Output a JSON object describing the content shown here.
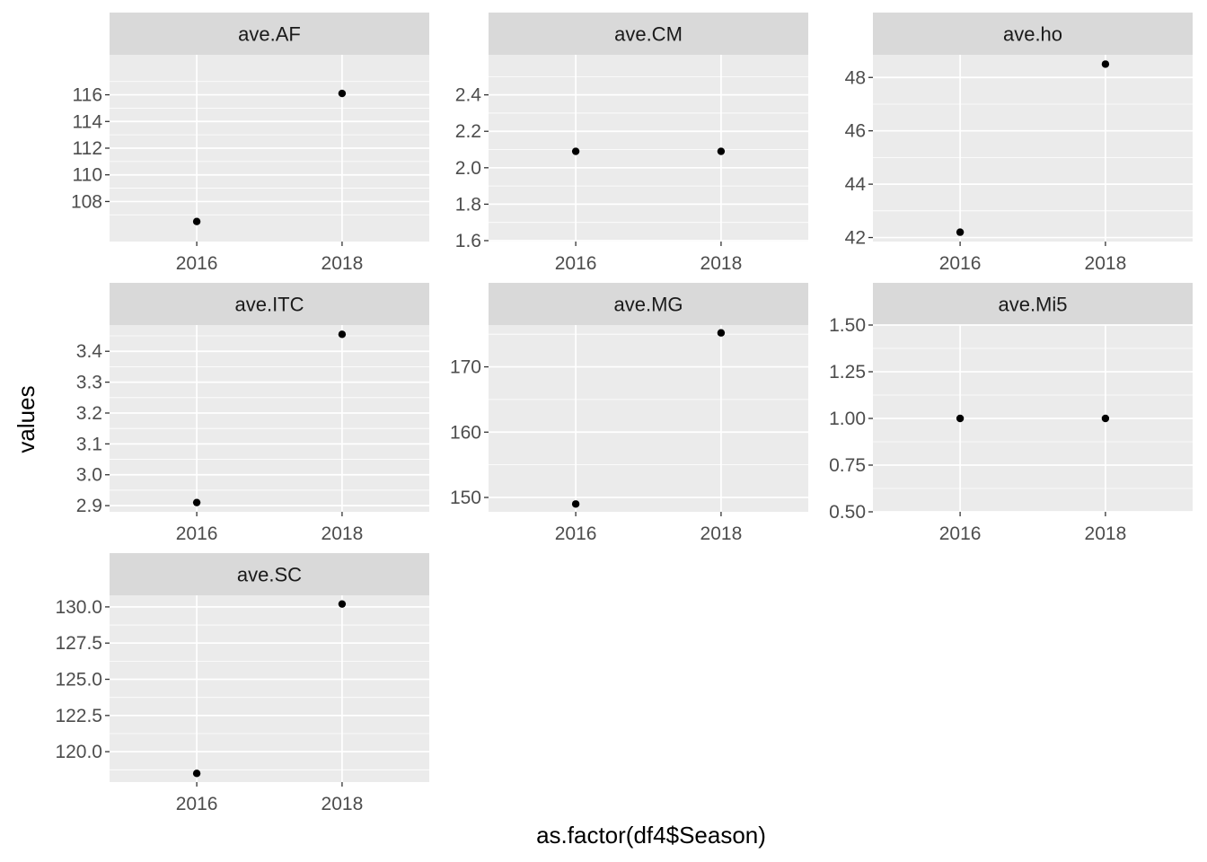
{
  "chart_data": {
    "type": "scatter",
    "xlabel": "as.factor(df4$Season)",
    "ylabel": "values",
    "categories": [
      "2016",
      "2018"
    ],
    "panels": [
      {
        "strip": "ave.AF",
        "values": [
          106.5,
          116.1
        ],
        "ylim": [
          105.0,
          119.0
        ],
        "yticks": [
          108,
          110,
          112,
          114,
          116
        ],
        "ytick_labels": [
          "108",
          "110",
          "112",
          "114",
          "116"
        ]
      },
      {
        "strip": "ave.CM",
        "values": [
          2.09,
          2.09
        ],
        "ylim": [
          1.595,
          2.62
        ],
        "yticks": [
          1.6,
          1.8,
          2.0,
          2.2,
          2.4
        ],
        "ytick_labels": [
          "1.6",
          "1.8",
          "2.0",
          "2.2",
          "2.4"
        ]
      },
      {
        "strip": "ave.ho",
        "values": [
          42.2,
          48.5
        ],
        "ylim": [
          41.85,
          48.85
        ],
        "yticks": [
          42,
          44,
          46,
          48
        ],
        "ytick_labels": [
          "42",
          "44",
          "46",
          "48"
        ]
      },
      {
        "strip": "ave.ITC",
        "values": [
          2.91,
          3.455
        ],
        "ylim": [
          2.88,
          3.485
        ],
        "yticks": [
          2.9,
          3.0,
          3.1,
          3.2,
          3.3,
          3.4
        ],
        "ytick_labels": [
          "2.9",
          "3.0",
          "3.1",
          "3.2",
          "3.3",
          "3.4"
        ]
      },
      {
        "strip": "ave.MG",
        "values": [
          149,
          175.2
        ],
        "ylim": [
          147.8,
          176.4
        ],
        "yticks": [
          150,
          160,
          170
        ],
        "ytick_labels": [
          "150",
          "160",
          "170"
        ]
      },
      {
        "strip": "ave.Mi5",
        "values": [
          1.0,
          1.0
        ],
        "ylim": [
          0.5,
          1.5
        ],
        "yticks": [
          0.5,
          0.75,
          1.0,
          1.25,
          1.5
        ],
        "ytick_labels": [
          "0.50",
          "0.75",
          "1.00",
          "1.25",
          "1.50"
        ]
      },
      {
        "strip": "ave.SC",
        "values": [
          118.5,
          130.2
        ],
        "ylim": [
          117.9,
          130.8
        ],
        "yticks": [
          120.0,
          122.5,
          125.0,
          127.5,
          130.0
        ],
        "ytick_labels": [
          "120.0",
          "122.5",
          "125.0",
          "127.5",
          "130.0"
        ]
      }
    ],
    "grid": true,
    "legend": "none"
  }
}
